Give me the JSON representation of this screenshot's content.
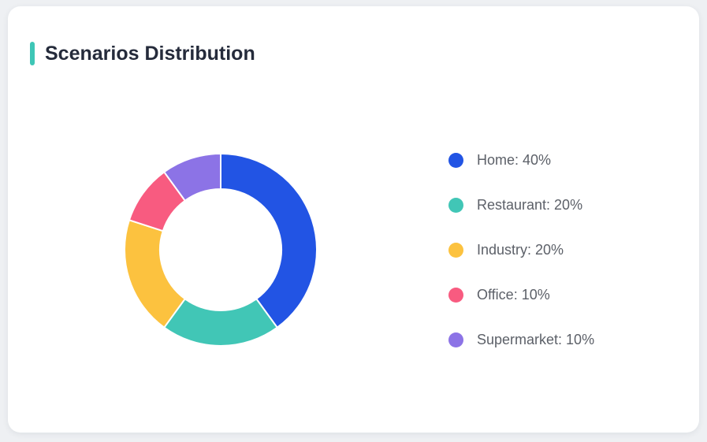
{
  "theme": {
    "page_background": "#eef0f3",
    "card_background": "#ffffff",
    "accent_color": "#3ec6b6",
    "title_color": "#252b3b",
    "legend_text_color": "#5c6068"
  },
  "header": {
    "title": "Scenarios Distribution"
  },
  "chart_data": {
    "type": "pie",
    "subtype": "donut",
    "title": "Scenarios Distribution",
    "categories": [
      "Home",
      "Restaurant",
      "Industry",
      "Office",
      "Supermarket"
    ],
    "values": [
      40,
      20,
      20,
      10,
      10
    ],
    "unit": "%",
    "colors": [
      "#2254e4",
      "#41c6b6",
      "#fcc23f",
      "#f85b80",
      "#8c73e6"
    ],
    "legend_labels": [
      "Home: 40%",
      "Restaurant: 20%",
      "Industry: 20%",
      "Office: 10%",
      "Supermarket: 10%"
    ],
    "legend_position": "right",
    "start_angle_deg": 0,
    "direction": "clockwise",
    "inner_radius_ratio": 0.63,
    "segment_border_color": "#ffffff",
    "segment_border_width": 2
  }
}
